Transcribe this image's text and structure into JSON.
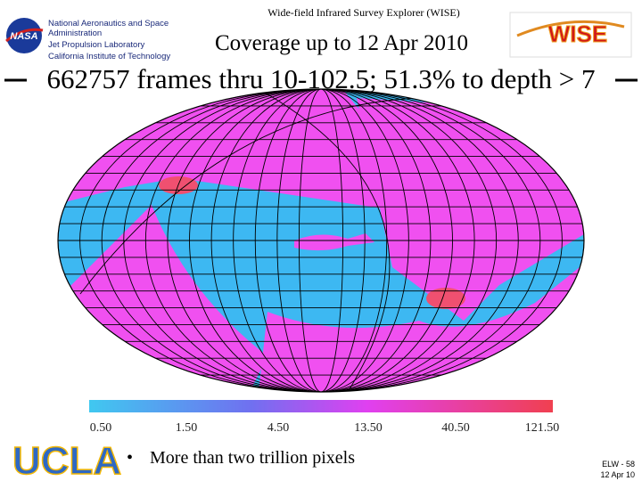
{
  "header": {
    "organization": [
      "National Aeronautics and Space",
      "Administration",
      "Jet Propulsion Laboratory",
      "California Institute of Technology"
    ],
    "nasa_logo": "NASA",
    "mission": "Wide-field Infrared Survey Explorer (WISE)",
    "title": "Coverage up to 12 Apr 2010",
    "subtitle": "662757 frames thru 10-102.5; 51.3% to depth > 7",
    "wise_logo": "WISE"
  },
  "colorbar": {
    "labels": [
      "0.50",
      "1.50",
      "4.50",
      "13.50",
      "40.50",
      "121.50"
    ]
  },
  "footer": {
    "ucla_logo": "UCLA",
    "bullet": "More than two trillion pixels",
    "slide_number": "ELW - 58",
    "date": "12 Apr 10"
  }
}
